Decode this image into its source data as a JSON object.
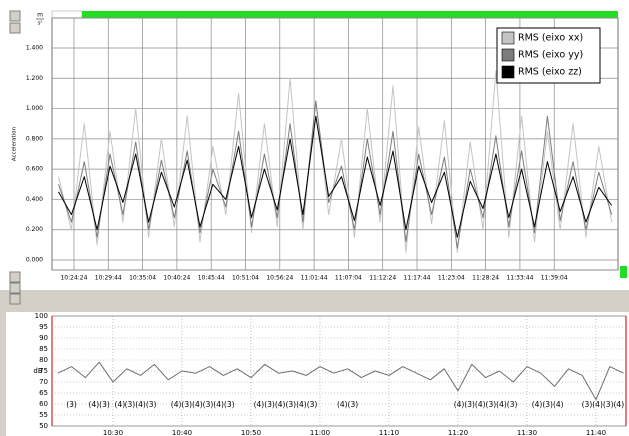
{
  "chart_data": [
    {
      "type": "line",
      "ylabel": "Acceleration",
      "y_unit_top": "m",
      "y_unit_bottom": "s²",
      "x": [
        "10:22",
        "10:24",
        "10:26",
        "10:28",
        "10:30",
        "10:32",
        "10:34",
        "10:36",
        "10:38",
        "10:40",
        "10:42",
        "10:44",
        "10:46",
        "10:48",
        "10:50",
        "10:52",
        "10:54",
        "10:56",
        "10:58",
        "11:00",
        "11:02",
        "11:04",
        "11:06",
        "11:08",
        "11:10",
        "11:12",
        "11:14",
        "11:16",
        "11:18",
        "11:20",
        "11:22",
        "11:24",
        "11:26",
        "11:28",
        "11:30",
        "11:32",
        "11:34",
        "11:36",
        "11:38",
        "11:40",
        "11:42",
        "11:44",
        "11:46",
        "11:48"
      ],
      "series": [
        {
          "name": "RMS  (eixo xx)",
          "color": "#c4c4c4",
          "values": [
            0.55,
            0.2,
            0.9,
            0.1,
            0.85,
            0.25,
            1.0,
            0.15,
            0.8,
            0.22,
            0.95,
            0.12,
            0.75,
            0.3,
            1.1,
            0.18,
            0.9,
            0.22,
            1.2,
            0.2,
            1.05,
            0.3,
            0.8,
            0.15,
            1.0,
            0.25,
            1.15,
            0.05,
            0.88,
            0.24,
            0.92,
            0.05,
            0.78,
            0.2,
            1.25,
            0.15,
            0.95,
            0.12,
            0.85,
            0.2,
            0.9,
            0.15,
            0.75,
            0.25
          ]
        },
        {
          "name": "RMS  (eixo yy)",
          "color": "#7c7c7c",
          "values": [
            0.5,
            0.25,
            0.65,
            0.15,
            0.7,
            0.3,
            0.78,
            0.2,
            0.66,
            0.28,
            0.72,
            0.18,
            0.6,
            0.35,
            0.85,
            0.22,
            0.7,
            0.28,
            0.9,
            0.25,
            1.05,
            0.38,
            0.62,
            0.2,
            0.8,
            0.3,
            0.85,
            0.12,
            0.7,
            0.3,
            0.68,
            0.08,
            0.6,
            0.28,
            0.82,
            0.22,
            0.72,
            0.18,
            0.95,
            0.26,
            0.65,
            0.2,
            0.58,
            0.3
          ]
        },
        {
          "name": "RMS  (eixo zz)",
          "color": "#000000",
          "values": [
            0.45,
            0.3,
            0.55,
            0.2,
            0.62,
            0.38,
            0.7,
            0.25,
            0.58,
            0.35,
            0.66,
            0.22,
            0.5,
            0.4,
            0.75,
            0.28,
            0.6,
            0.33,
            0.8,
            0.3,
            0.95,
            0.42,
            0.55,
            0.26,
            0.68,
            0.36,
            0.72,
            0.2,
            0.62,
            0.38,
            0.58,
            0.15,
            0.52,
            0.34,
            0.7,
            0.28,
            0.6,
            0.22,
            0.65,
            0.32,
            0.55,
            0.25,
            0.48,
            0.36
          ]
        }
      ],
      "xlim": [
        "10:20:59",
        "11:48:59"
      ],
      "xticks": [
        "10:24:24",
        "10:29:44",
        "10:35:04",
        "10:40:24",
        "10:45:44",
        "10:51:04",
        "10:56:24",
        "11:01:44",
        "11:07:04",
        "11:12:24",
        "11:17:44",
        "11:23:04",
        "11:28:24",
        "11:33:44",
        "11:39:04"
      ],
      "ylim": [
        -0.066,
        1.598
      ],
      "yticks": [
        {
          "value": 0,
          "label": "0.000"
        },
        {
          "value": 0.2,
          "label": "0.200"
        },
        {
          "value": 0.4,
          "label": "0.400"
        },
        {
          "value": 0.6,
          "label": "0.600"
        },
        {
          "value": 0.8,
          "label": "0.800"
        },
        {
          "value": 1,
          "label": "1.000"
        },
        {
          "value": 1.2,
          "label": "1.200"
        },
        {
          "value": 1.4,
          "label": "1.400"
        }
      ],
      "grid": true,
      "legend": "upper right"
    },
    {
      "type": "line",
      "ylabel": "dB",
      "x": [
        "10:22",
        "10:24",
        "10:26",
        "10:28",
        "10:30",
        "10:32",
        "10:34",
        "10:36",
        "10:38",
        "10:40",
        "10:42",
        "10:44",
        "10:46",
        "10:48",
        "10:50",
        "10:52",
        "10:54",
        "10:56",
        "10:58",
        "11:00",
        "11:02",
        "11:04",
        "11:06",
        "11:08",
        "11:10",
        "11:12",
        "11:14",
        "11:16",
        "11:18",
        "11:20",
        "11:22",
        "11:24",
        "11:26",
        "11:28",
        "11:30",
        "11:32",
        "11:34",
        "11:36",
        "11:38",
        "11:40",
        "11:42",
        "11:44"
      ],
      "values": [
        74,
        77,
        72,
        79,
        70,
        76,
        73,
        78,
        71,
        75,
        74,
        77,
        73,
        76,
        72,
        78,
        74,
        75,
        73,
        77,
        74,
        76,
        72,
        75,
        73,
        77,
        74,
        71,
        76,
        66,
        78,
        72,
        75,
        70,
        77,
        74,
        68,
        76,
        73,
        62,
        77,
        74
      ],
      "color": "#6e6e6e",
      "xlim": [
        "10:21:10",
        "11:44:21"
      ],
      "xticks": [
        "10:30",
        "10:40",
        "10:50",
        "11:00",
        "11:10",
        "11:20",
        "11:30",
        "11:40"
      ],
      "ylim": [
        50,
        100
      ],
      "yticks": [
        50,
        55,
        60,
        65,
        70,
        75,
        80,
        85,
        90,
        95,
        100
      ],
      "grid": true,
      "annotations": [
        {
          "x": "10:24",
          "text": "(3)"
        },
        {
          "x": "10:28",
          "text": "(4)(3)"
        },
        {
          "x": "10:31",
          "text": "(4)"
        },
        {
          "x": "10:34",
          "text": "(3)(4)(3)"
        },
        {
          "x": "10:43",
          "text": "(4)(3)(4)(3)(4)(3)"
        },
        {
          "x": "10:55",
          "text": "(4)(3)(4)(3)(4)(3)"
        },
        {
          "x": "11:04",
          "text": "(4)(3)"
        },
        {
          "x": "11:24",
          "text": "(4)(3)(4)(3)(4)(3)"
        },
        {
          "x": "11:33",
          "text": "(4)(3)(4)"
        },
        {
          "x": "11:41",
          "text": "(3)(4)(3)(4)"
        }
      ]
    }
  ]
}
